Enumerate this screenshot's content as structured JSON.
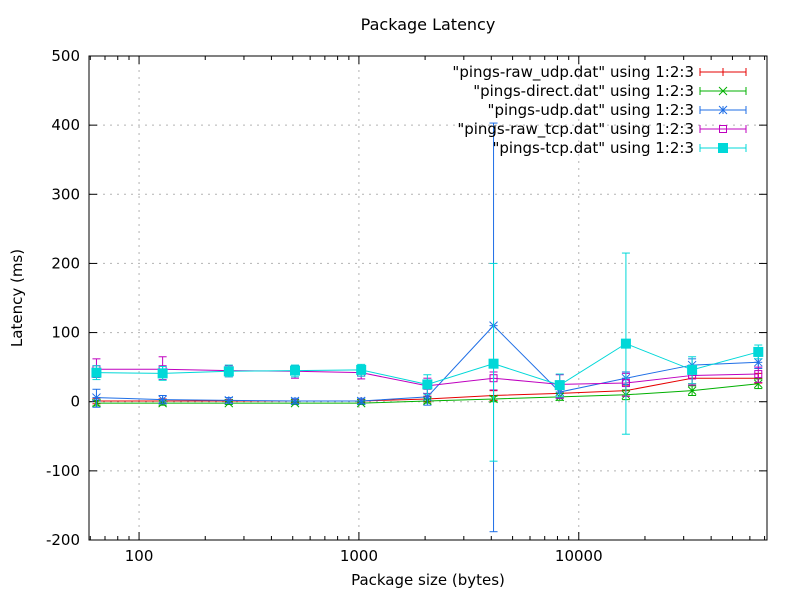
{
  "chart_data": {
    "type": "line",
    "title": "Package Latency",
    "xlabel": "Package size (bytes)",
    "ylabel": "Latency (ms)",
    "x_scale": "log10",
    "xlim": [
      59.2,
      71800
    ],
    "ylim": [
      -200,
      500
    ],
    "x_major_ticks": [
      100,
      1000,
      10000
    ],
    "x_major_tick_labels": [
      "100",
      "1000",
      "10000"
    ],
    "y_major_ticks": [
      -200,
      -100,
      0,
      100,
      200,
      300,
      400,
      500
    ],
    "y_major_tick_labels": [
      "-200",
      "-100",
      "0",
      "100",
      "200",
      "300",
      "400",
      "500"
    ],
    "grid": {
      "x_values": [
        100,
        1000,
        10000
      ],
      "y_values": [
        -100,
        0,
        100,
        200,
        300,
        400
      ],
      "color": "#b3b3b3",
      "style": "dashed"
    },
    "legend_position": "top-right-inside",
    "x": [
      64,
      128,
      256,
      512,
      1024,
      2048,
      4096,
      8192,
      16384,
      32768,
      65536
    ],
    "series": [
      {
        "name": "pings-raw_udp",
        "label": "\"pings-raw_udp.dat\" using 1:2:3",
        "color": "#e60000",
        "marker": "plus",
        "y": [
          1,
          1,
          1,
          1,
          1,
          4,
          9,
          12,
          16,
          34,
          34
        ],
        "err_low": [
          -3,
          -2,
          -1,
          -1,
          -1,
          0,
          2,
          6,
          8,
          26,
          27
        ],
        "err_high": [
          5,
          4,
          3,
          3,
          3,
          8,
          16,
          18,
          24,
          42,
          41
        ]
      },
      {
        "name": "pings-direct",
        "label": "\"pings-direct.dat\" using 1:2:3",
        "color": "#00b000",
        "marker": "cross",
        "y": [
          -2,
          -2,
          -2,
          -2,
          -2,
          1,
          4,
          7,
          10,
          16,
          26
        ],
        "err_low": [
          -6,
          -5,
          -4,
          -4,
          -4,
          -2,
          0,
          2,
          3,
          9,
          19
        ],
        "err_high": [
          2,
          1,
          0,
          0,
          0,
          4,
          8,
          12,
          17,
          23,
          33
        ]
      },
      {
        "name": "pings-udp",
        "label": "\"pings-udp.dat\" using 1:2:3",
        "color": "#1e6ee6",
        "marker": "star",
        "y": [
          6,
          3,
          2,
          1,
          1,
          7,
          110,
          14,
          34,
          53,
          57
        ],
        "err_low": [
          -8,
          -3,
          -2,
          -3,
          -3,
          -5,
          -188,
          5,
          25,
          45,
          48
        ],
        "err_high": [
          18,
          9,
          6,
          5,
          5,
          19,
          403,
          26,
          43,
          62,
          66
        ]
      },
      {
        "name": "pings-raw_tcp",
        "label": "\"pings-raw_tcp.dat\" using 1:2:3",
        "color": "#bf00bf",
        "marker": "open-square",
        "y": [
          47,
          47,
          45,
          44,
          42,
          23,
          34,
          25,
          27,
          38,
          40
        ],
        "err_low": [
          35,
          32,
          36,
          34,
          33,
          12,
          17,
          5,
          8,
          24,
          28
        ],
        "err_high": [
          62,
          65,
          52,
          52,
          50,
          34,
          43,
          39,
          41,
          52,
          50
        ]
      },
      {
        "name": "pings-tcp",
        "label": "\"pings-tcp.dat\" using 1:2:3",
        "color": "#00d8d8",
        "marker": "filled-square",
        "y": [
          42,
          41,
          44,
          45,
          46,
          25,
          55,
          24,
          84,
          46,
          72
        ],
        "err_low": [
          32,
          31,
          36,
          36,
          37,
          11,
          -86,
          7,
          -47,
          26,
          62
        ],
        "err_high": [
          52,
          51,
          53,
          53,
          54,
          39,
          200,
          40,
          215,
          65,
          82
        ]
      }
    ]
  }
}
